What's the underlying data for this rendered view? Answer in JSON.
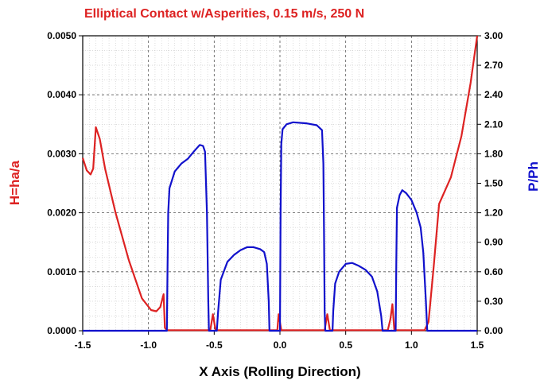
{
  "chart_data": {
    "type": "line",
    "title": "Elliptical Contact w/Asperities, 0.15 m/s, 250 N",
    "xlabel": "X Axis (Rolling Direction)",
    "ylabel_left": "H=ha/a",
    "ylabel_right": "P/Ph",
    "xlim": [
      -1.5,
      1.5
    ],
    "ylim_left": [
      0,
      0.005
    ],
    "ylim_right": [
      0,
      3.0
    ],
    "x_ticks": [
      "-1.5",
      "-1.0",
      "-0.5",
      "0.0",
      "0.5",
      "1.0",
      "1.5"
    ],
    "y_left_ticks": [
      "0.0000",
      "0.0010",
      "0.0020",
      "0.0030",
      "0.0040",
      "0.0050"
    ],
    "y_right_ticks": [
      "0.00",
      "0.30",
      "0.60",
      "0.90",
      "1.20",
      "1.50",
      "1.80",
      "2.10",
      "2.40",
      "2.70",
      "3.00"
    ],
    "grid": true,
    "colors": {
      "left_axis": "#dd2222",
      "right_axis": "#1111cc",
      "grid": "#999999"
    },
    "series": [
      {
        "axis": "left",
        "color": "#dd2222",
        "points": [
          [
            -1.5,
            0.00293
          ],
          [
            -1.47,
            0.00272
          ],
          [
            -1.44,
            0.00265
          ],
          [
            -1.42,
            0.00275
          ],
          [
            -1.4,
            0.00345
          ],
          [
            -1.37,
            0.00325
          ],
          [
            -1.33,
            0.00275
          ],
          [
            -1.25,
            0.002
          ],
          [
            -1.15,
            0.0012
          ],
          [
            -1.05,
            0.00055
          ],
          [
            -0.98,
            0.00035
          ],
          [
            -0.94,
            0.00033
          ],
          [
            -0.91,
            0.0004
          ],
          [
            -0.885,
            0.00062
          ],
          [
            -0.875,
            5e-05
          ],
          [
            -0.86,
            1e-05
          ],
          [
            -0.6,
            1e-05
          ],
          [
            -0.53,
            1e-05
          ],
          [
            -0.51,
            0.00028
          ],
          [
            -0.49,
            1e-05
          ],
          [
            -0.02,
            1e-05
          ],
          [
            -0.01,
            0.00028
          ],
          [
            0.01,
            1e-05
          ],
          [
            0.34,
            1e-05
          ],
          [
            0.36,
            0.00028
          ],
          [
            0.38,
            1e-05
          ],
          [
            0.82,
            1e-05
          ],
          [
            0.84,
            0.0002
          ],
          [
            0.855,
            0.00045
          ],
          [
            0.87,
            1e-05
          ],
          [
            1.1,
            1e-05
          ],
          [
            1.13,
            0.00015
          ],
          [
            1.17,
            0.0011
          ],
          [
            1.21,
            0.00215
          ],
          [
            1.3,
            0.0026
          ],
          [
            1.38,
            0.0033
          ],
          [
            1.45,
            0.0042
          ],
          [
            1.5,
            0.005
          ]
        ]
      },
      {
        "axis": "right",
        "color": "#1111cc",
        "points": [
          [
            -1.5,
            0.0
          ],
          [
            -0.86,
            0.0
          ],
          [
            -0.855,
            0.6
          ],
          [
            -0.85,
            1.2
          ],
          [
            -0.84,
            1.45
          ],
          [
            -0.8,
            1.62
          ],
          [
            -0.75,
            1.7
          ],
          [
            -0.7,
            1.75
          ],
          [
            -0.65,
            1.83
          ],
          [
            -0.61,
            1.89
          ],
          [
            -0.585,
            1.88
          ],
          [
            -0.57,
            1.82
          ],
          [
            -0.555,
            1.2
          ],
          [
            -0.545,
            0.3
          ],
          [
            -0.54,
            0.0
          ],
          [
            -0.48,
            0.0
          ],
          [
            -0.47,
            0.2
          ],
          [
            -0.45,
            0.52
          ],
          [
            -0.4,
            0.7
          ],
          [
            -0.35,
            0.77
          ],
          [
            -0.3,
            0.82
          ],
          [
            -0.25,
            0.85
          ],
          [
            -0.2,
            0.85
          ],
          [
            -0.15,
            0.83
          ],
          [
            -0.12,
            0.8
          ],
          [
            -0.1,
            0.68
          ],
          [
            -0.085,
            0.3
          ],
          [
            -0.08,
            0.0
          ],
          [
            0.0,
            0.0
          ],
          [
            0.005,
            1.2
          ],
          [
            0.01,
            1.9
          ],
          [
            0.02,
            2.05
          ],
          [
            0.05,
            2.1
          ],
          [
            0.1,
            2.12
          ],
          [
            0.2,
            2.11
          ],
          [
            0.28,
            2.09
          ],
          [
            0.32,
            2.04
          ],
          [
            0.33,
            1.7
          ],
          [
            0.335,
            1.0
          ],
          [
            0.34,
            0.2
          ],
          [
            0.345,
            0.0
          ],
          [
            0.4,
            0.0
          ],
          [
            0.405,
            0.2
          ],
          [
            0.42,
            0.48
          ],
          [
            0.45,
            0.6
          ],
          [
            0.5,
            0.68
          ],
          [
            0.55,
            0.69
          ],
          [
            0.6,
            0.66
          ],
          [
            0.65,
            0.62
          ],
          [
            0.7,
            0.55
          ],
          [
            0.74,
            0.4
          ],
          [
            0.77,
            0.15
          ],
          [
            0.78,
            0.0
          ],
          [
            0.88,
            0.0
          ],
          [
            0.885,
            0.7
          ],
          [
            0.89,
            1.25
          ],
          [
            0.91,
            1.38
          ],
          [
            0.93,
            1.43
          ],
          [
            0.96,
            1.4
          ],
          [
            1.0,
            1.33
          ],
          [
            1.04,
            1.2
          ],
          [
            1.07,
            1.05
          ],
          [
            1.09,
            0.8
          ],
          [
            1.11,
            0.3
          ],
          [
            1.12,
            0.0
          ],
          [
            1.5,
            0.0
          ]
        ]
      }
    ]
  }
}
